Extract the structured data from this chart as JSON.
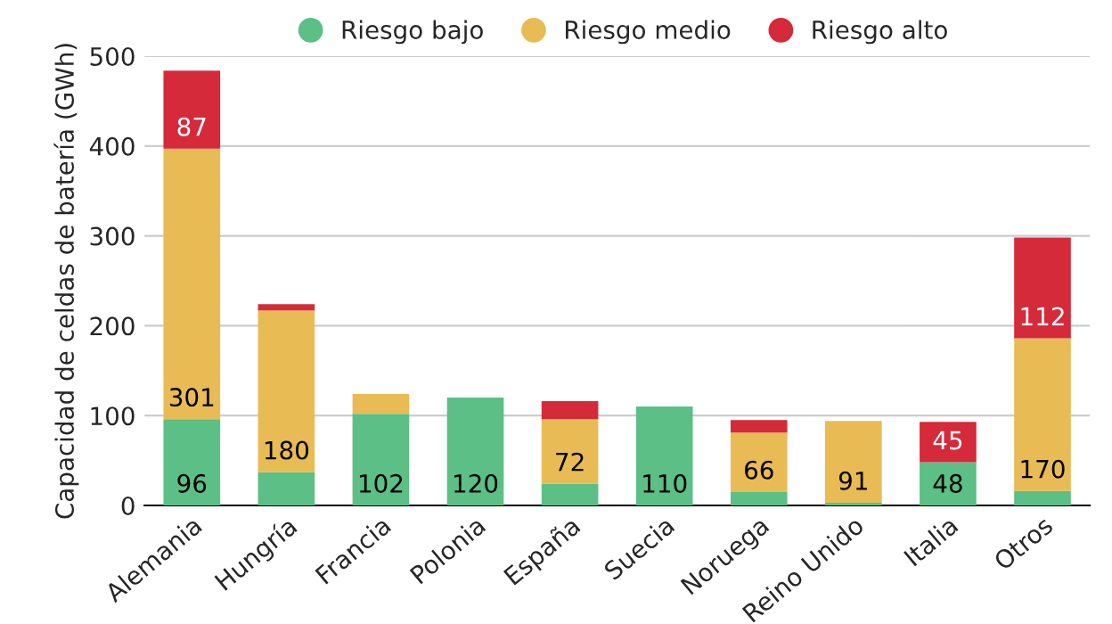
{
  "chart_data": {
    "type": "bar",
    "stacked": true,
    "ylabel": "Capacidad de celdas de batería (GWh)",
    "categories": [
      "Alemania",
      "Hungría",
      "Francia",
      "Polonia",
      "España",
      "Suecia",
      "Noruega",
      "Reino Unido",
      "Italia",
      "Otros"
    ],
    "series": [
      {
        "name": "Riesgo bajo",
        "color": "#5cbf85",
        "values": [
          96,
          37,
          102,
          120,
          24,
          110,
          15,
          3,
          48,
          16
        ],
        "value_labels": [
          "96",
          null,
          "102",
          "120",
          null,
          "110",
          null,
          null,
          "48",
          null
        ]
      },
      {
        "name": "Riesgo medio",
        "color": "#e8bb55",
        "values": [
          301,
          180,
          22,
          null,
          72,
          null,
          66,
          91,
          null,
          170
        ],
        "value_labels": [
          "301",
          "180",
          null,
          null,
          "72",
          null,
          "66",
          "91",
          null,
          "170"
        ]
      },
      {
        "name": "Riesgo alto",
        "color": "#d42a3a",
        "values": [
          87,
          7,
          null,
          null,
          20,
          null,
          14,
          null,
          45,
          112
        ],
        "value_labels": [
          "87",
          null,
          null,
          null,
          null,
          null,
          null,
          null,
          "45",
          "112"
        ]
      }
    ],
    "ylim": [
      0,
      500
    ],
    "yticks": [
      0,
      100,
      200,
      300,
      400,
      500
    ],
    "grid": "y",
    "legend": "top"
  }
}
